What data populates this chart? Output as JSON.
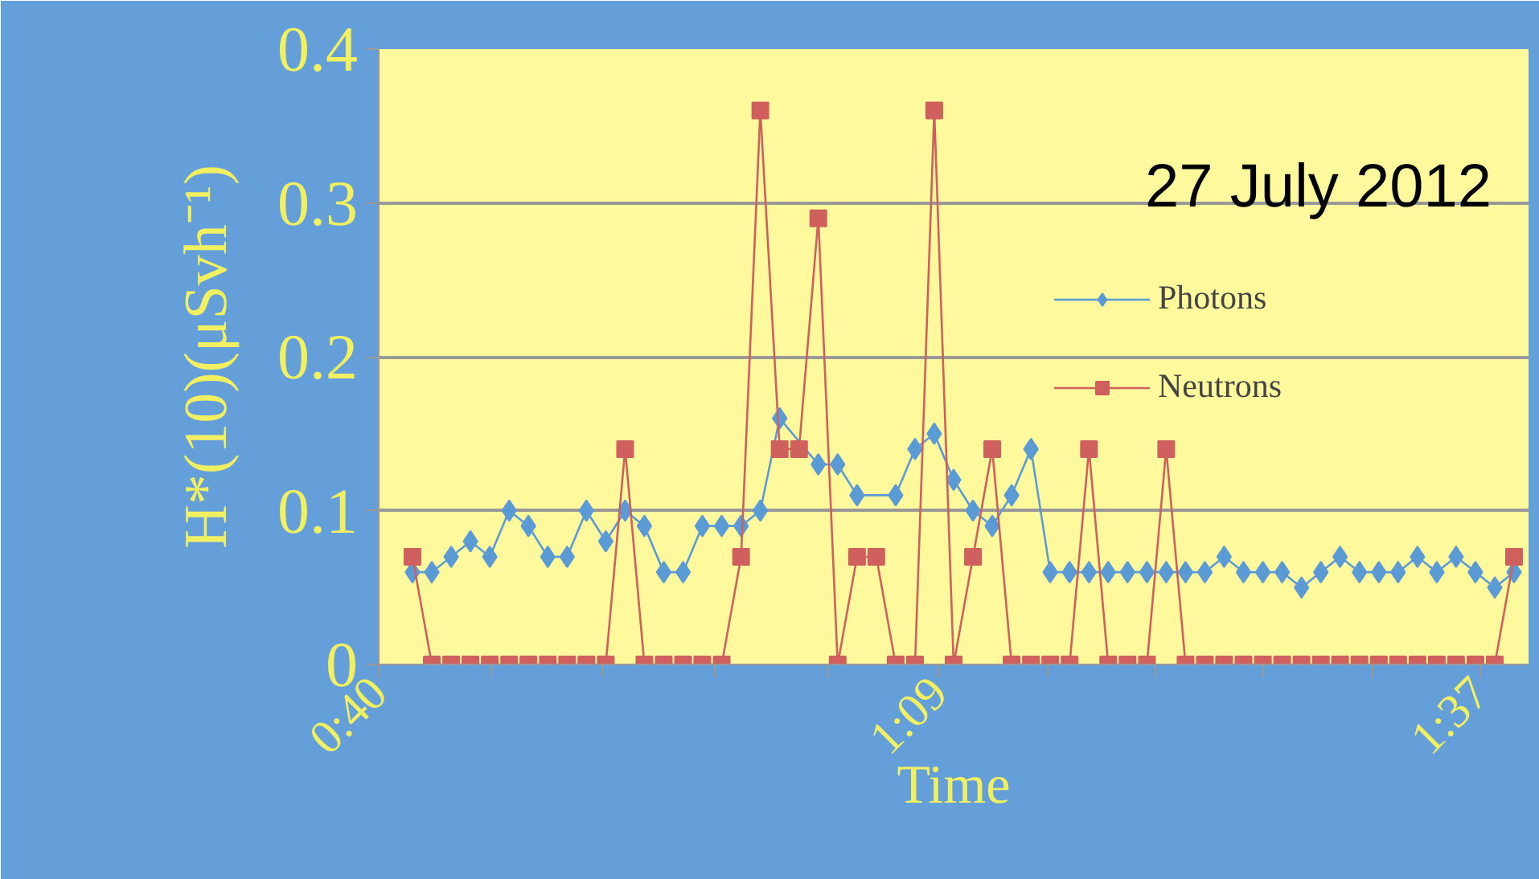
{
  "chart_data": {
    "type": "line",
    "title": "27 July 2012",
    "xlabel": "Time",
    "ylabel": "H*(10)(μSvh⁻¹)",
    "x": [
      0.6958,
      0.7125,
      0.7292,
      0.7458,
      0.7625,
      0.7792,
      0.7958,
      0.8125,
      0.8292,
      0.8458,
      0.8625,
      0.8792,
      0.8958,
      0.9125,
      0.9292,
      0.9458,
      0.9625,
      0.9792,
      0.9958,
      1.0125,
      1.0292,
      1.0458,
      1.0625,
      1.0792,
      1.0958,
      1.1125,
      1.1292,
      1.1458,
      1.1625,
      1.1792,
      1.1958,
      1.2125,
      1.2292,
      1.2458,
      1.2625,
      1.2792,
      1.2958,
      1.3125,
      1.3292,
      1.3458,
      1.3625,
      1.3792,
      1.3958,
      1.4125,
      1.4292,
      1.4458,
      1.4625,
      1.4792,
      1.4958,
      1.5125,
      1.5292,
      1.5458,
      1.5625,
      1.5792,
      1.5958,
      1.6125,
      1.6292,
      1.6458
    ],
    "series": [
      {
        "name": "Photons",
        "color": "#5b9bd5",
        "marker": "diamond",
        "values": [
          0.06,
          0.06,
          0.07,
          0.08,
          0.07,
          0.1,
          0.09,
          0.07,
          0.07,
          0.1,
          0.08,
          0.1,
          0.09,
          0.06,
          0.06,
          0.09,
          0.09,
          0.09,
          0.1,
          0.16,
          null,
          0.13,
          0.13,
          0.11,
          null,
          0.11,
          0.14,
          0.15,
          0.12,
          0.1,
          0.09,
          0.11,
          0.14,
          0.06,
          0.06,
          0.06,
          0.06,
          0.06,
          0.06,
          0.06,
          0.06,
          0.06,
          0.07,
          0.06,
          0.06,
          0.06,
          0.05,
          0.06,
          0.07,
          0.06,
          0.06,
          0.06,
          0.07,
          0.06,
          0.07,
          0.06,
          0.05,
          0.06
        ]
      },
      {
        "name": "Neutrons",
        "color": "#d0605e",
        "marker": "square",
        "values": [
          0.07,
          0,
          0,
          0,
          0,
          0,
          0,
          0,
          0,
          0,
          0,
          0.14,
          0,
          0,
          0,
          0,
          0,
          0.07,
          0.36,
          0.14,
          0.14,
          0.29,
          0,
          0.07,
          0.07,
          0,
          0,
          0.36,
          0,
          0.07,
          0.14,
          0,
          0,
          0,
          0,
          0.14,
          0,
          0,
          0,
          0.14,
          0,
          0,
          0,
          0,
          0,
          0,
          0,
          0,
          0,
          0,
          0,
          0,
          0,
          0,
          0,
          0,
          0,
          0.07
        ]
      }
    ],
    "xlim": [
      0.6667,
      1.6583
    ],
    "xticks": [
      {
        "value": 0.6667,
        "label": "0:40"
      },
      {
        "value": 0.7633,
        "label": null
      },
      {
        "value": 0.86,
        "label": null
      },
      {
        "value": 0.9567,
        "label": null
      },
      {
        "value": 1.0533,
        "label": null
      },
      {
        "value": 1.15,
        "label": "1:09"
      },
      {
        "value": 1.2433,
        "label": null
      },
      {
        "value": 1.3367,
        "label": null
      },
      {
        "value": 1.43,
        "label": null
      },
      {
        "value": 1.5233,
        "label": null
      },
      {
        "value": 1.6167,
        "label": "1:37"
      }
    ],
    "ylim": [
      0,
      0.4
    ],
    "yticks": [
      0,
      0.1,
      0.2,
      0.3,
      0.4
    ],
    "grid": "y",
    "legend": "top right",
    "line_style": "solid"
  }
}
